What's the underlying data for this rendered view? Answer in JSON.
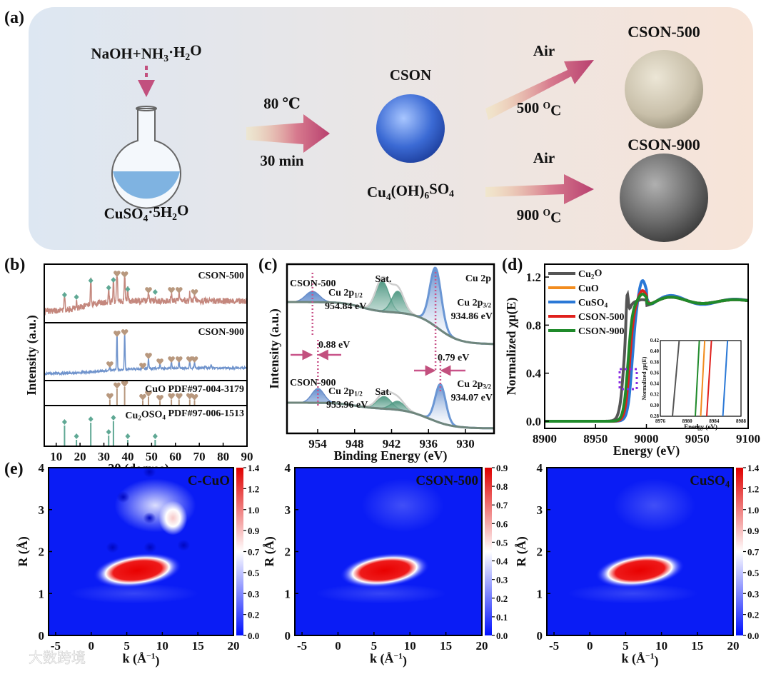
{
  "panel_a": {
    "letter": "(a)",
    "reagent_top": "NaOH+NH{_3}·H{_2}O",
    "reagent_bottom": "CuSO{_4}·5H{_2}O",
    "step1_temp": "80 ℃",
    "step1_time": "30 min",
    "intermediate_name": "CSON",
    "intermediate_formula": "Cu{_4}(OH){_6}SO{_4}",
    "route_500": {
      "gas": "Air",
      "temp": "500 {^O}C",
      "product": "CSON-500"
    },
    "route_900": {
      "gas": "Air",
      "temp": "900 {^O}C",
      "product": "CSON-900"
    },
    "colors": {
      "arrow": "#c2507e",
      "sphere_cson": "#3f6fd6",
      "sphere_500": "#cfc6b2",
      "sphere_900": "#707070"
    }
  },
  "chart_data": [
    {
      "panel": "(b)",
      "type": "line",
      "xlabel": "2θ (degree)",
      "ylabel": "Intensity (a.u.)",
      "xlim": [
        5,
        90
      ],
      "xticks": [
        "10",
        "20",
        "30",
        "40",
        "50",
        "60",
        "70",
        "80",
        "90"
      ],
      "series": [
        {
          "name": "CSON-500",
          "color": "#c4877d",
          "cu2oso4_peaks": [
            13.5,
            18.5,
            24.5,
            32,
            34,
            40,
            51.5
          ],
          "cuo_peaks": [
            35.5,
            38.7,
            48.7,
            58.3,
            61.5,
            66,
            68
          ]
        },
        {
          "name": "CSON-900",
          "color": "#6f93cc",
          "cuo_peaks": [
            32.5,
            35.5,
            38.7,
            46.3,
            48.7,
            53.5,
            58.3,
            61.5,
            66,
            68
          ]
        },
        {
          "name": "CuO PDF#97-004-3179",
          "color": "#b89a83",
          "sticks": [
            [
              32.5,
              0.3
            ],
            [
              35.5,
              0.9
            ],
            [
              38.7,
              1.0
            ],
            [
              46.3,
              0.25
            ],
            [
              48.7,
              0.45
            ],
            [
              53.5,
              0.2
            ],
            [
              58.3,
              0.3
            ],
            [
              61.5,
              0.3
            ],
            [
              66,
              0.3
            ],
            [
              68,
              0.25
            ]
          ]
        },
        {
          "name": "Cu{_2}OSO{_4} PDF#97-006-1513",
          "color": "#6aab98",
          "sticks": [
            [
              13.5,
              0.7
            ],
            [
              18.5,
              0.2
            ],
            [
              24.5,
              0.8
            ],
            [
              32,
              0.35
            ],
            [
              34,
              0.85
            ],
            [
              40,
              0.2
            ],
            [
              51.5,
              0.2
            ]
          ]
        }
      ]
    },
    {
      "panel": "(c)",
      "type": "line",
      "xlabel": "Binding Energy (eV)",
      "ylabel": "Intensity (a.u.)",
      "xlim": [
        959,
        925
      ],
      "xticks": [
        "954",
        "948",
        "942",
        "936",
        "930"
      ],
      "region": "Cu 2p",
      "satellite_label": "Sat.",
      "series": [
        {
          "name": "CSON-500",
          "p12_label": "Cu 2p{_1/2}",
          "p12_value": "954.84 eV",
          "p32_label": "Cu 2p{_3/2}",
          "p32_value": "934.86 eV",
          "p12": 954.84,
          "p32": 934.86,
          "sat": [
            943.5,
            941.0
          ]
        },
        {
          "name": "CSON-900",
          "p12_label": "Cu 2p{_1/2}",
          "p12_value": "953.96 eV",
          "p32_label": "Cu 2p{_3/2}",
          "p32_value": "934.07 eV",
          "p12": 953.96,
          "p32": 934.07,
          "sat": [
            943.2,
            941.0
          ]
        }
      ],
      "shift_12": "0.88 eV",
      "shift_32": "0.79 eV"
    },
    {
      "panel": "(d)",
      "type": "line",
      "xlabel": "Energy (eV)",
      "ylabel": "Normalized χμ(E)",
      "xlim": [
        8900,
        9100
      ],
      "ylim": [
        -0.1,
        1.3
      ],
      "xticks": [
        "8900",
        "8950",
        "9000",
        "9050",
        "9100"
      ],
      "yticks": [
        "0.0",
        "0.4",
        "0.8",
        "1.2"
      ],
      "series": [
        {
          "name": "Cu{_2}O",
          "color": "#555555",
          "edge": 8978,
          "white_line": 1.02
        },
        {
          "name": "CuO",
          "color": "#f28c1e",
          "edge": 8982.5,
          "white_line": 1.06
        },
        {
          "name": "CuSO{_4}",
          "color": "#2a78d6",
          "edge": 8986,
          "white_line": 1.18
        },
        {
          "name": "CSON-500",
          "color": "#e0201c",
          "edge": 8983.5,
          "white_line": 1.09
        },
        {
          "name": "CSON-900",
          "color": "#1f8a2a",
          "edge": 8982,
          "white_line": 1.06
        }
      ],
      "inset": {
        "xlabel": "Energy (eV)",
        "ylabel": "Normalized χμ(E)",
        "xlim": [
          8976,
          8988
        ],
        "ylim": [
          0.28,
          0.42
        ],
        "xticks": [
          "8976",
          "8980",
          "8984",
          "8988"
        ],
        "yticks": [
          "0.28",
          "0.30",
          "0.32",
          "0.34",
          "0.36",
          "0.38",
          "0.40",
          "0.42"
        ],
        "lines": [
          [
            8977.8,
            8978.8
          ],
          [
            8982.0,
            8982.6
          ],
          [
            8985.3,
            8986.0
          ],
          [
            8982.9,
            8983.6
          ],
          [
            8981.2,
            8981.8
          ]
        ]
      }
    },
    {
      "panel": "(e)",
      "type": "heatmap",
      "xlabel": "k (Å{^−1})",
      "ylabel": "R (Å)",
      "xlim": [
        -6,
        20
      ],
      "ylim": [
        0,
        4
      ],
      "xticks": [
        "-5",
        "0",
        "5",
        "10",
        "15",
        "20"
      ],
      "yticks": [
        "0",
        "1",
        "2",
        "3",
        "4"
      ],
      "maps": [
        {
          "name": "C-CuO",
          "max": 1.4,
          "cbar_ticks": [
            "0.0",
            "0.2",
            "0.3",
            "0.5",
            "0.7",
            "0.9",
            "1.0",
            "1.2",
            "1.4"
          ],
          "main_peak": {
            "k": 6.5,
            "R": 1.55
          },
          "second_peak": {
            "k": 11.5,
            "R": 2.8
          }
        },
        {
          "name": "CSON-500",
          "max": 0.9,
          "cbar_ticks": [
            "0.0",
            "0.1",
            "0.2",
            "0.3",
            "0.4",
            "0.5",
            "0.6",
            "0.7",
            "0.8",
            "0.9"
          ],
          "main_peak": {
            "k": 6.5,
            "R": 1.55
          }
        },
        {
          "name": "CuSO{_4}",
          "max": 1.4,
          "cbar_ticks": [
            "0.0",
            "0.2",
            "0.3",
            "0.5",
            "0.7",
            "0.9",
            "1.0",
            "1.2",
            "1.4"
          ],
          "main_peak": {
            "k": 7.0,
            "R": 1.55
          }
        }
      ]
    }
  ],
  "panel_letters": {
    "b": "(b)",
    "c": "(c)",
    "d": "(d)",
    "e": "(e)"
  },
  "watermark": "大数跨境"
}
